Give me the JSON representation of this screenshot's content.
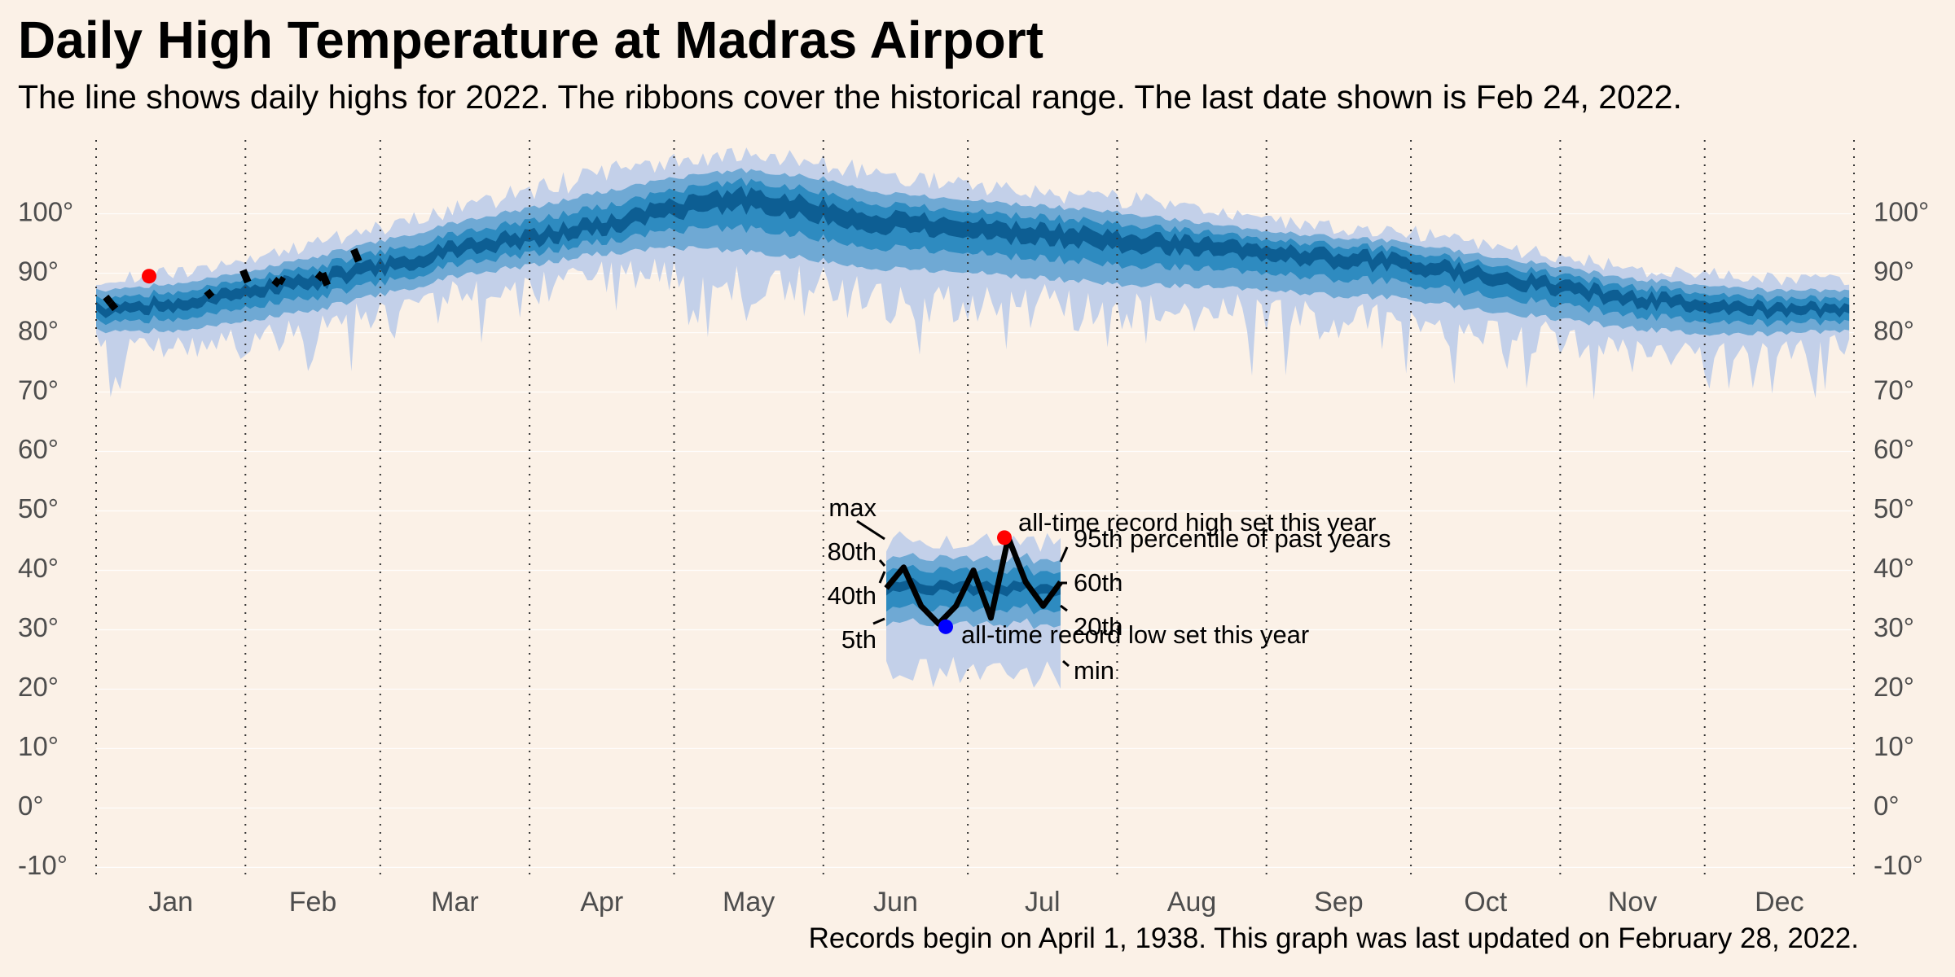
{
  "chart_data": {
    "type": "line",
    "title": "Daily High Temperature at Madras Airport",
    "subtitle": "The line shows daily highs for 2022. The ribbons cover the historical range. The last date shown is Feb 24, 2022.",
    "caption": "Records begin on April 1, 1938. This graph was last updated on February 28, 2022.",
    "ylim": [
      -12,
      112
    ],
    "y_ticks": [
      -10,
      0,
      10,
      20,
      30,
      40,
      50,
      60,
      70,
      80,
      90,
      100
    ],
    "y_tick_suffix": "°",
    "months": [
      "Jan",
      "Feb",
      "Mar",
      "Apr",
      "May",
      "Jun",
      "Jul",
      "Aug",
      "Sep",
      "Oct",
      "Nov",
      "Dec"
    ],
    "grid": true,
    "historical_normals": {
      "x_day_of_year": [
        1,
        15,
        32,
        46,
        60,
        75,
        91,
        105,
        121,
        135,
        152,
        166,
        182,
        196,
        213,
        227,
        244,
        258,
        274,
        288,
        305,
        319,
        335,
        349,
        365
      ],
      "p50": [
        84,
        85,
        87,
        89,
        91,
        94,
        96,
        98,
        101,
        103,
        101,
        99,
        98,
        97,
        96,
        95,
        94,
        93,
        92,
        90,
        88,
        86,
        85,
        84,
        84
      ],
      "max": [
        89,
        90,
        92,
        95,
        98,
        101,
        104,
        107,
        109,
        110,
        109,
        106,
        105,
        104,
        103,
        101,
        99,
        98,
        97,
        95,
        93,
        91,
        90,
        89,
        89
      ],
      "min": [
        77,
        76,
        77,
        79,
        82,
        85,
        87,
        89,
        88,
        85,
        84,
        83,
        83,
        82,
        81,
        81,
        81,
        80,
        80,
        78,
        77,
        76,
        75,
        76,
        77
      ]
    },
    "series": [
      {
        "values_2022": {
          "x_day_of_year": [
            3,
            4,
            5,
            24,
            25,
            32,
            38,
            39,
            40,
            47,
            48,
            49,
            55
          ],
          "y": [
            86,
            85,
            84,
            87,
            86,
            89.5,
            88,
            89,
            88.5,
            89,
            90,
            88,
            93
          ]
        }
      }
    ],
    "record_high_2022": {
      "x_day_of_year": 12,
      "y": 89.5
    },
    "legend_key": {
      "labels_left": [
        "max",
        "80th",
        "40th",
        "5th"
      ],
      "labels_right": [
        "95th percentile of past years",
        "60th",
        "20th",
        "min"
      ],
      "record_high_label": "all-time record high set this year",
      "record_low_label": "all-time record low set this year",
      "line_y": [
        37,
        40.5,
        34,
        31,
        34,
        40,
        32,
        45.5,
        38,
        34,
        38
      ],
      "record_high_y": 45.5,
      "record_low_y": 30.5
    },
    "colors": {
      "background": "#fbf1e7",
      "band_outer": "#c3d0e9",
      "band_mid": "#6fa9d4",
      "band_inner": "#2e8bc0",
      "band_core": "#0d5e93",
      "line": "#000000",
      "record_high": "#ff0000",
      "record_low": "#0000ff",
      "grid": "#ffffff",
      "text_muted": "#4d4d4d"
    }
  }
}
